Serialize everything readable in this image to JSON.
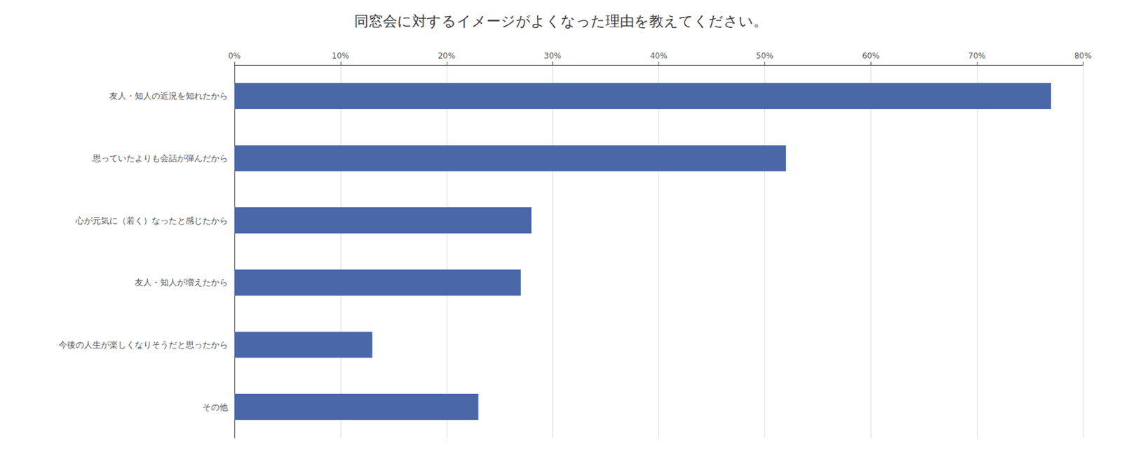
{
  "chart_data": {
    "type": "bar",
    "orientation": "horizontal",
    "title": "同窓会に対するイメージがよくなった理由を教えてください。",
    "categories": [
      "友人・知人の近況を知れたから",
      "思っていたよりも会話が弾んだから",
      "心が元気に（若く）なったと感じたから",
      "友人・知人が増えたから",
      "今後の人生が楽しくなりそうだと思ったから",
      "その他"
    ],
    "values": [
      77.0,
      52.0,
      28.0,
      27.0,
      13.0,
      23.0
    ],
    "color": "#4a67a8",
    "xlim": [
      0,
      80
    ],
    "xticks": [
      {
        "value": 0,
        "label": "0%"
      },
      {
        "value": 10,
        "label": "10%"
      },
      {
        "value": 20,
        "label": "20%"
      },
      {
        "value": 30,
        "label": "30%"
      },
      {
        "value": 40,
        "label": "40%"
      },
      {
        "value": 50,
        "label": "50%"
      },
      {
        "value": 60,
        "label": "60%"
      },
      {
        "value": 70,
        "label": "70%"
      },
      {
        "value": 80,
        "label": "80%"
      }
    ],
    "grid": true
  }
}
